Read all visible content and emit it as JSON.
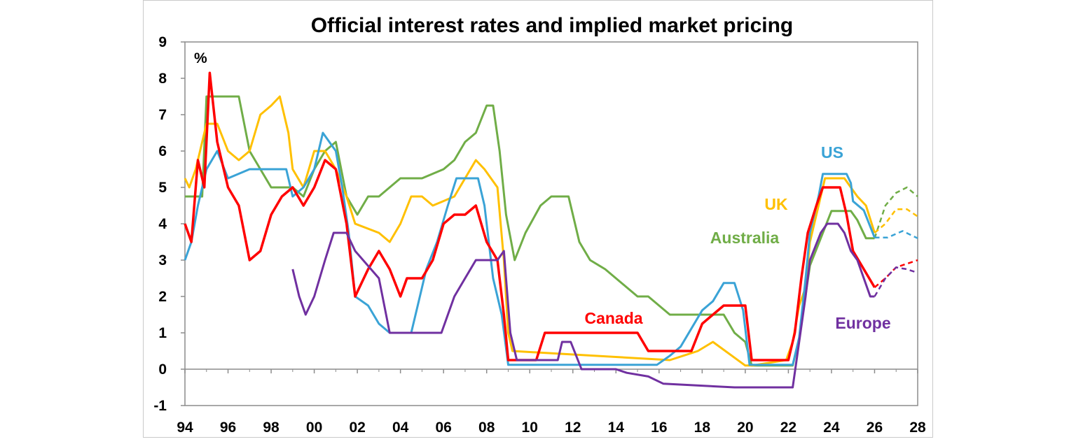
{
  "chart_data": {
    "type": "line",
    "title": "Official interest rates and implied market pricing",
    "ylabel": "%",
    "xlabel": "",
    "ylim": [
      -1,
      9
    ],
    "xlim": [
      1994,
      2028
    ],
    "grid": false,
    "y_ticks": [
      "9",
      "8",
      "7",
      "6",
      "5",
      "4",
      "3",
      "2",
      "1",
      "0",
      "-1"
    ],
    "x_ticks": [
      "94",
      "96",
      "98",
      "00",
      "02",
      "04",
      "06",
      "08",
      "10",
      "12",
      "14",
      "16",
      "18",
      "20",
      "22",
      "24",
      "26",
      "28"
    ],
    "series": [
      {
        "name": "US",
        "color": "#3aa3d6",
        "x": [
          1994.0,
          1994.3,
          1994.6,
          1995.0,
          1995.5,
          1996.0,
          1997.0,
          1998.7,
          1999.0,
          1999.5,
          2000.0,
          2000.4,
          2001.0,
          2001.3,
          2001.6,
          2001.9,
          2002.5,
          2003.0,
          2003.5,
          2004.5,
          2004.8,
          2005.2,
          2005.7,
          2006.2,
          2006.6,
          2007.6,
          2007.9,
          2008.3,
          2008.7,
          2009.0,
          2015.9,
          2016.5,
          2017.0,
          2017.5,
          2018.0,
          2018.5,
          2019.0,
          2019.5,
          2019.9,
          2020.2,
          2022.2,
          2022.5,
          2022.8,
          2023.0,
          2023.4,
          2023.6,
          2024.7,
          2024.9,
          2025.0,
          2025.5,
          2026.0
        ],
        "y": [
          3.0,
          3.5,
          4.5,
          5.5,
          6.0,
          5.25,
          5.5,
          5.5,
          4.75,
          5.0,
          5.5,
          6.5,
          6.0,
          5.0,
          3.75,
          2.0,
          1.75,
          1.25,
          1.0,
          1.0,
          1.75,
          2.75,
          3.5,
          4.5,
          5.25,
          5.25,
          4.5,
          2.5,
          1.5,
          0.12,
          0.12,
          0.37,
          0.62,
          1.12,
          1.62,
          1.87,
          2.37,
          2.37,
          1.62,
          0.12,
          0.12,
          0.87,
          2.5,
          3.75,
          4.75,
          5.37,
          5.37,
          5.12,
          4.62,
          4.37,
          3.62
        ]
      },
      {
        "name": "US implied market pricing",
        "color": "#3aa3d6",
        "dashed": true,
        "x": [
          2026.0,
          2026.6,
          2027.3,
          2028.0
        ],
        "y": [
          3.62,
          3.62,
          3.8,
          3.6
        ]
      },
      {
        "name": "UK",
        "color": "#ffc000",
        "x": [
          1994.0,
          1994.2,
          1994.5,
          1995.0,
          1995.5,
          1996.0,
          1996.5,
          1997.0,
          1997.5,
          1998.0,
          1998.4,
          1998.8,
          1999.0,
          1999.5,
          2000.0,
          2000.5,
          2001.0,
          2001.5,
          2001.9,
          2003.0,
          2003.5,
          2004.0,
          2004.5,
          2005.0,
          2005.5,
          2006.5,
          2007.0,
          2007.5,
          2007.9,
          2008.5,
          2008.8,
          2009.0,
          2009.2,
          2016.5,
          2017.8,
          2018.5,
          2020.0,
          2020.3,
          2021.9,
          2022.2,
          2022.5,
          2022.8,
          2023.0,
          2023.4,
          2023.7,
          2024.6,
          2024.9,
          2025.2,
          2025.6,
          2026.0
        ],
        "y": [
          5.25,
          5.0,
          5.5,
          6.75,
          6.75,
          6.0,
          5.75,
          6.0,
          7.0,
          7.25,
          7.5,
          6.5,
          5.5,
          5.0,
          6.0,
          6.0,
          5.5,
          4.75,
          4.0,
          3.75,
          3.5,
          4.0,
          4.75,
          4.75,
          4.5,
          4.75,
          5.25,
          5.75,
          5.5,
          5.0,
          3.0,
          1.0,
          0.5,
          0.25,
          0.5,
          0.75,
          0.1,
          0.1,
          0.25,
          0.75,
          1.75,
          2.25,
          3.5,
          4.5,
          5.25,
          5.25,
          5.0,
          4.75,
          4.5,
          3.75
        ]
      },
      {
        "name": "UK implied market pricing",
        "color": "#ffc000",
        "dashed": true,
        "x": [
          2026.0,
          2026.5,
          2027.0,
          2027.5,
          2028.0
        ],
        "y": [
          3.75,
          4.0,
          4.4,
          4.4,
          4.2
        ]
      },
      {
        "name": "Australia",
        "color": "#70ad47",
        "x": [
          1994.0,
          1994.8,
          1995.0,
          1996.5,
          1997.0,
          1997.5,
          1998.0,
          1999.0,
          1999.5,
          2000.0,
          2000.5,
          2001.0,
          2001.5,
          2002.0,
          2002.5,
          2003.0,
          2004.0,
          2005.0,
          2006.0,
          2006.5,
          2007.0,
          2007.5,
          2008.0,
          2008.3,
          2008.6,
          2008.9,
          2009.3,
          2009.8,
          2010.5,
          2011.0,
          2011.8,
          2012.3,
          2012.8,
          2013.5,
          2015.0,
          2015.5,
          2016.5,
          2017.0,
          2019.0,
          2019.5,
          2020.0,
          2020.3,
          2022.2,
          2022.5,
          2023.0,
          2023.5,
          2024.0,
          2024.9,
          2025.2,
          2025.6,
          2026.0
        ],
        "y": [
          4.75,
          4.75,
          7.5,
          7.5,
          6.0,
          5.5,
          5.0,
          5.0,
          4.75,
          5.5,
          6.0,
          6.25,
          4.75,
          4.25,
          4.75,
          4.75,
          5.25,
          5.25,
          5.5,
          5.75,
          6.25,
          6.5,
          7.25,
          7.25,
          6.0,
          4.25,
          3.0,
          3.75,
          4.5,
          4.75,
          4.75,
          3.5,
          3.0,
          2.75,
          2.0,
          2.0,
          1.5,
          1.5,
          1.5,
          1.0,
          0.75,
          0.1,
          0.1,
          0.85,
          2.85,
          3.6,
          4.35,
          4.35,
          4.1,
          3.6,
          3.6
        ]
      },
      {
        "name": "Australia implied market pricing",
        "color": "#70ad47",
        "dashed": true,
        "x": [
          2026.0,
          2026.5,
          2027.0,
          2027.5,
          2028.0
        ],
        "y": [
          3.6,
          4.5,
          4.85,
          5.0,
          4.75
        ]
      },
      {
        "name": "Canada",
        "color": "#ff0000",
        "x": [
          1994.0,
          1994.3,
          1994.6,
          1994.9,
          1995.15,
          1995.5,
          1996.0,
          1996.5,
          1997.0,
          1997.5,
          1998.0,
          1998.5,
          1999.0,
          1999.5,
          2000.0,
          2000.5,
          2001.0,
          2001.5,
          2001.9,
          2002.5,
          2003.0,
          2003.5,
          2004.0,
          2004.3,
          2005.0,
          2005.5,
          2006.0,
          2006.5,
          2007.0,
          2007.5,
          2008.0,
          2008.5,
          2008.8,
          2009.0,
          2010.3,
          2010.7,
          2015.0,
          2015.5,
          2017.5,
          2018.0,
          2018.5,
          2019.0,
          2020.0,
          2020.3,
          2022.0,
          2022.3,
          2022.6,
          2022.9,
          2023.3,
          2023.6,
          2024.4,
          2024.7,
          2025.0,
          2025.5,
          2026.0
        ],
        "y": [
          4.0,
          3.5,
          5.75,
          5.0,
          8.15,
          6.25,
          5.0,
          4.5,
          3.0,
          3.25,
          4.25,
          4.75,
          5.0,
          4.5,
          5.0,
          5.75,
          5.5,
          4.0,
          2.0,
          2.75,
          3.25,
          2.75,
          2.0,
          2.5,
          2.5,
          3.0,
          4.0,
          4.25,
          4.25,
          4.5,
          3.5,
          3.0,
          1.5,
          0.25,
          0.25,
          1.0,
          1.0,
          0.5,
          0.5,
          1.25,
          1.5,
          1.75,
          1.75,
          0.25,
          0.25,
          1.0,
          2.5,
          3.75,
          4.5,
          5.0,
          5.0,
          4.25,
          3.25,
          2.75,
          2.25
        ]
      },
      {
        "name": "Canada implied market pricing",
        "color": "#ff0000",
        "dashed": true,
        "x": [
          2026.0,
          2026.5,
          2027.0,
          2027.5,
          2028.0
        ],
        "y": [
          2.25,
          2.5,
          2.8,
          2.9,
          3.0
        ]
      },
      {
        "name": "Europe",
        "color": "#7030a0",
        "x": [
          1999.0,
          1999.3,
          1999.6,
          2000.0,
          2000.5,
          2000.9,
          2001.5,
          2001.9,
          2003.0,
          2003.5,
          2005.9,
          2006.5,
          2007.0,
          2007.5,
          2008.5,
          2008.8,
          2009.1,
          2009.4,
          2011.3,
          2011.5,
          2011.9,
          2012.4,
          2014.0,
          2014.5,
          2015.5,
          2016.2,
          2019.5,
          2022.2,
          2022.5,
          2022.8,
          2023.0,
          2023.5,
          2023.8,
          2024.3,
          2024.6,
          2024.9,
          2025.2,
          2025.5,
          2025.8,
          2026.0
        ],
        "y": [
          2.75,
          2.0,
          1.5,
          2.0,
          3.0,
          3.75,
          3.75,
          3.25,
          2.5,
          1.0,
          1.0,
          2.0,
          2.5,
          3.0,
          3.0,
          3.25,
          1.0,
          0.25,
          0.25,
          0.75,
          0.75,
          0.0,
          0.0,
          -0.1,
          -0.2,
          -0.4,
          -0.5,
          -0.5,
          0.75,
          2.0,
          3.0,
          3.75,
          4.0,
          4.0,
          3.75,
          3.25,
          3.0,
          2.5,
          2.0,
          2.0
        ]
      },
      {
        "name": "Europe implied market pricing",
        "color": "#7030a0",
        "dashed": true,
        "x": [
          2026.0,
          2026.5,
          2027.0,
          2027.5,
          2028.0
        ],
        "y": [
          2.0,
          2.5,
          2.8,
          2.75,
          2.65
        ]
      }
    ],
    "annotations": [
      {
        "text": "US",
        "color": "#3aa3d6"
      },
      {
        "text": "UK",
        "color": "#ffc000"
      },
      {
        "text": "Australia",
        "color": "#70ad47"
      },
      {
        "text": "Canada",
        "color": "#ff0000"
      },
      {
        "text": "Europe",
        "color": "#7030a0"
      }
    ]
  }
}
